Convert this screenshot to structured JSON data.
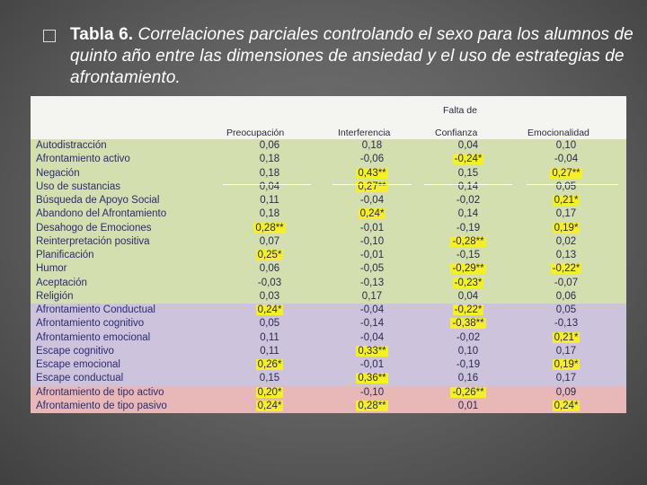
{
  "slide": {
    "bullet_icon": "square-bullet-icon",
    "caption_bold": "Tabla 6.",
    "caption_text": "Correlaciones parciales controlando el sexo para los alumnos de quinto año entre las dimensiones de ansiedad y el uso de estrategias de afrontamiento."
  },
  "table": {
    "header_group": "Falta de",
    "columns": [
      "Preocupación",
      "Interferencia",
      "Confianza",
      "Emocionalidad"
    ],
    "colors": {
      "green": "#d3dfae",
      "purple": "#cdc3dd",
      "pink": "#e8b8b8",
      "highlight": "#f5ef2a"
    },
    "rows": [
      {
        "label": "Autodistracción",
        "band": "green",
        "values": [
          "0,06",
          "0,18",
          "0,04",
          "0,10"
        ],
        "hl": [
          false,
          false,
          false,
          false
        ]
      },
      {
        "label": "Afrontamiento activo",
        "band": "green",
        "values": [
          "0,18",
          "-0,06",
          "-0,24*",
          "-0,04"
        ],
        "hl": [
          false,
          false,
          true,
          false
        ]
      },
      {
        "label": "Negación",
        "band": "green",
        "values": [
          "0,18",
          "0,43**",
          "0,15",
          "0,27**"
        ],
        "hl": [
          false,
          true,
          false,
          true
        ]
      },
      {
        "label": "Uso de sustancias",
        "band": "green",
        "values": [
          "0,04",
          "0,27**",
          "0,14",
          "0,05"
        ],
        "hl": [
          false,
          true,
          false,
          false
        ]
      },
      {
        "label": "Búsqueda de Apoyo Social",
        "band": "green",
        "values": [
          "0,11",
          "-0,04",
          "-0,02",
          "0,21*"
        ],
        "hl": [
          false,
          false,
          false,
          true
        ]
      },
      {
        "label": "Abandono del Afrontamiento",
        "band": "green",
        "values": [
          "0,18",
          "0,24*",
          "0,14",
          "0,17"
        ],
        "hl": [
          false,
          true,
          false,
          false
        ]
      },
      {
        "label": "Desahogo de Emociones",
        "band": "green",
        "values": [
          "0,28**",
          "-0,01",
          "-0,19",
          "0,19*"
        ],
        "hl": [
          true,
          false,
          false,
          true
        ]
      },
      {
        "label": "Reinterpretación positiva",
        "band": "green",
        "values": [
          "0,07",
          "-0,10",
          "-0,28**",
          "0,02"
        ],
        "hl": [
          false,
          false,
          true,
          false
        ]
      },
      {
        "label": "Planificación",
        "band": "green",
        "values": [
          "0,25*",
          "-0,01",
          "-0,15",
          "0,13"
        ],
        "hl": [
          true,
          false,
          false,
          false
        ]
      },
      {
        "label": "Humor",
        "band": "green",
        "values": [
          "0,06",
          "-0,05",
          "-0,29**",
          "-0,22*"
        ],
        "hl": [
          false,
          false,
          true,
          true
        ]
      },
      {
        "label": "Aceptación",
        "band": "green",
        "values": [
          "-0,03",
          "-0,13",
          "-0,23*",
          "-0,07"
        ],
        "hl": [
          false,
          false,
          true,
          false
        ]
      },
      {
        "label": "Religión",
        "band": "green",
        "values": [
          "0,03",
          "0,17",
          "0,04",
          "0,06"
        ],
        "hl": [
          false,
          false,
          false,
          false
        ]
      },
      {
        "label": "Afrontamiento Conductual",
        "band": "purple",
        "values": [
          "0,24*",
          "-0,04",
          "-0,22*",
          "0,05"
        ],
        "hl": [
          true,
          false,
          true,
          false
        ]
      },
      {
        "label": "Afrontamiento cognitivo",
        "band": "purple",
        "values": [
          "0,05",
          "-0,14",
          "-0,38**",
          "-0,13"
        ],
        "hl": [
          false,
          false,
          true,
          false
        ]
      },
      {
        "label": "Afrontamiento emocional",
        "band": "purple",
        "values": [
          "0,11",
          "-0,04",
          "-0,02",
          "0,21*"
        ],
        "hl": [
          false,
          false,
          false,
          true
        ]
      },
      {
        "label": "Escape cognitivo",
        "band": "purple",
        "values": [
          "0,11",
          "0,33**",
          "0,10",
          "0,17"
        ],
        "hl": [
          false,
          true,
          false,
          false
        ]
      },
      {
        "label": "Escape emocional",
        "band": "purple",
        "values": [
          "0,26*",
          "-0,01",
          "-0,19",
          "0,19*"
        ],
        "hl": [
          true,
          false,
          false,
          true
        ]
      },
      {
        "label": "Escape conductual",
        "band": "purple",
        "values": [
          "0,15",
          "0,36**",
          "0,16",
          "0,17"
        ],
        "hl": [
          false,
          true,
          false,
          false
        ]
      },
      {
        "label": "Afrontamiento de tipo activo",
        "band": "pink",
        "values": [
          "0,20*",
          "-0,10",
          "-0,26**",
          "0,09"
        ],
        "hl": [
          true,
          false,
          true,
          false
        ]
      },
      {
        "label": "Afrontamiento de tipo pasivo",
        "band": "pink",
        "values": [
          "0,24*",
          "0,28**",
          "0,01",
          "0,24*"
        ],
        "hl": [
          true,
          true,
          false,
          true
        ]
      }
    ]
  }
}
